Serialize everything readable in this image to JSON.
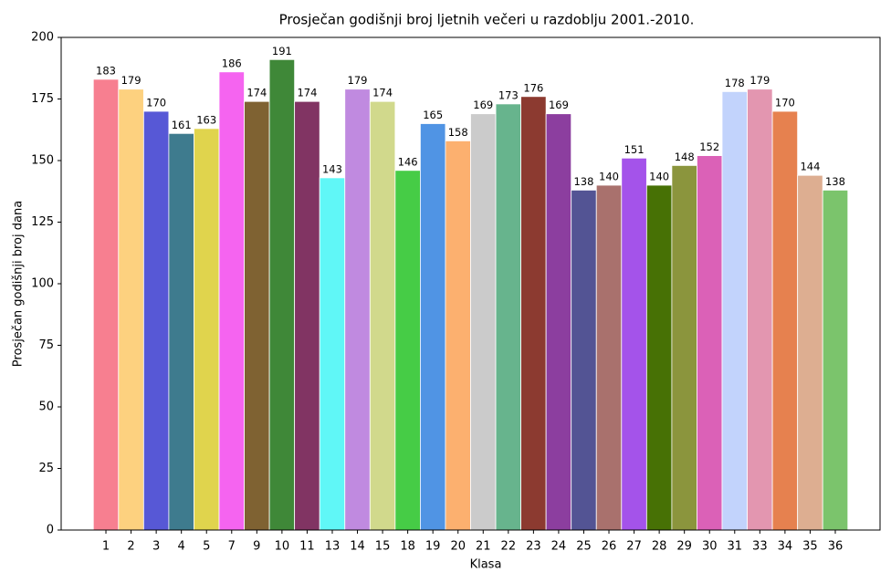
{
  "chart_data": {
    "type": "bar",
    "title": "Prosječan godišnji broj ljetnih večeri u razdoblju 2001.-2010.",
    "x_label": "Klasa",
    "y_label": "Prosječan godišnji broj dana",
    "categories": [
      "1",
      "2",
      "3",
      "4",
      "5",
      "7",
      "9",
      "10",
      "11",
      "13",
      "14",
      "15",
      "18",
      "19",
      "20",
      "21",
      "22",
      "23",
      "24",
      "25",
      "26",
      "27",
      "28",
      "29",
      "30",
      "31",
      "33",
      "34",
      "35",
      "36"
    ],
    "values": [
      183,
      179,
      170,
      161,
      163,
      186,
      174,
      191,
      174,
      143,
      179,
      174,
      146,
      165,
      158,
      169,
      173,
      176,
      169,
      138,
      140,
      151,
      140,
      148,
      152,
      178,
      179,
      170,
      144,
      138
    ],
    "colors": [
      "#f77f90",
      "#fdd17f",
      "#5758d6",
      "#3e7b8e",
      "#e0d44d",
      "#f564f0",
      "#7f6232",
      "#3f8838",
      "#813463",
      "#60f7f7",
      "#c08ae0",
      "#d1d98c",
      "#46cc46",
      "#5094e4",
      "#fcb06f",
      "#cbcbcb",
      "#67b48d",
      "#8c3a30",
      "#8c3e9f",
      "#535494",
      "#a9716d",
      "#a453ea",
      "#477105",
      "#8b953d",
      "#db61b7",
      "#c2d3fc",
      "#e396b0",
      "#e6814f",
      "#ddae91",
      "#7bc46c"
    ],
    "ylim": [
      0,
      200
    ],
    "yticks": [
      0,
      25,
      50,
      75,
      100,
      125,
      150,
      175,
      200
    ]
  }
}
